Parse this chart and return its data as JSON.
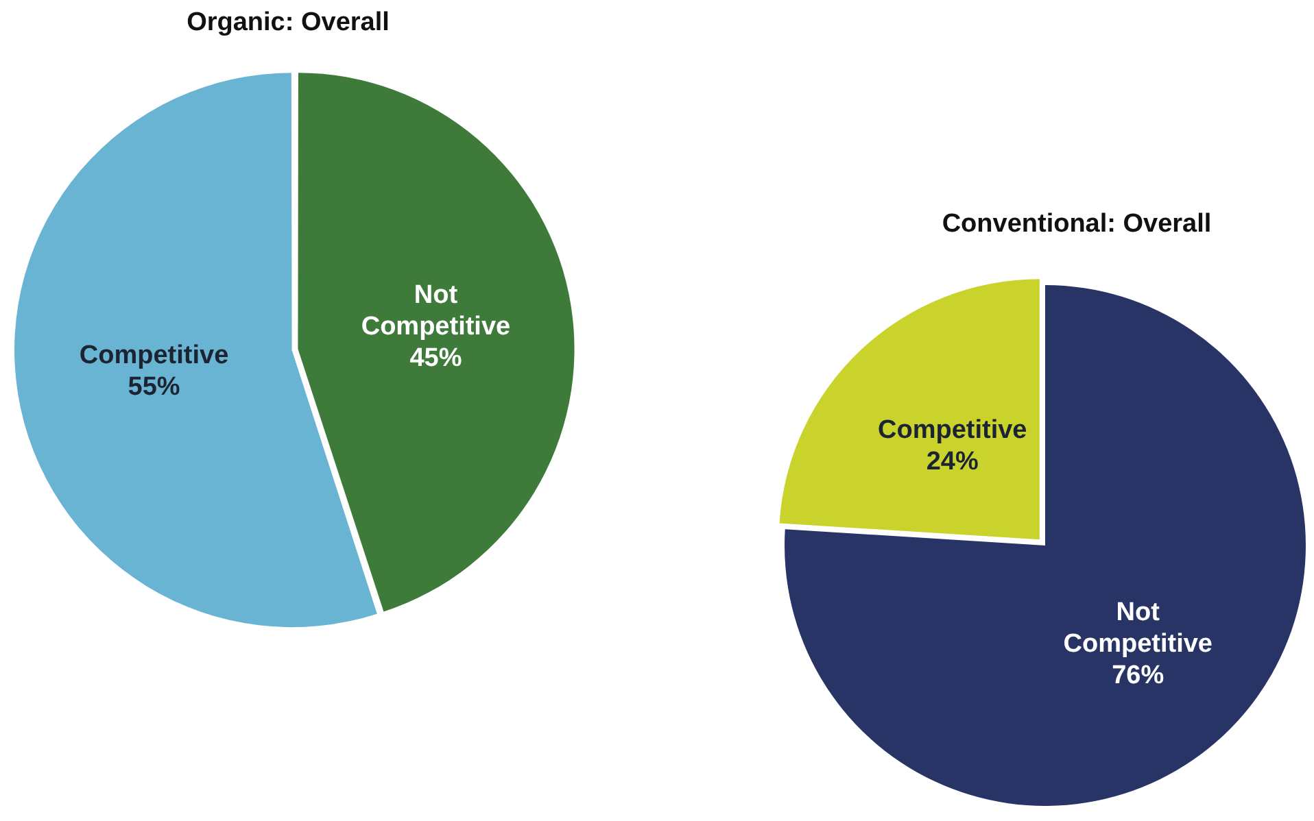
{
  "chart_data": [
    {
      "type": "pie",
      "title": "Organic: Overall",
      "categories": [
        "Competitive",
        "Not Competitive"
      ],
      "values": [
        55,
        45
      ],
      "colors": [
        "#6ab4d3",
        "#3e7b3b"
      ],
      "data_labels": true,
      "value_labels": [
        "55%",
        "45%"
      ]
    },
    {
      "type": "pie",
      "title": "Conventional: Overall",
      "categories": [
        "Competitive",
        "Not Competitive"
      ],
      "values": [
        24,
        76
      ],
      "colors": [
        "#c9d32c",
        "#283466"
      ],
      "data_labels": true,
      "value_labels": [
        "24%",
        "76%"
      ]
    }
  ]
}
